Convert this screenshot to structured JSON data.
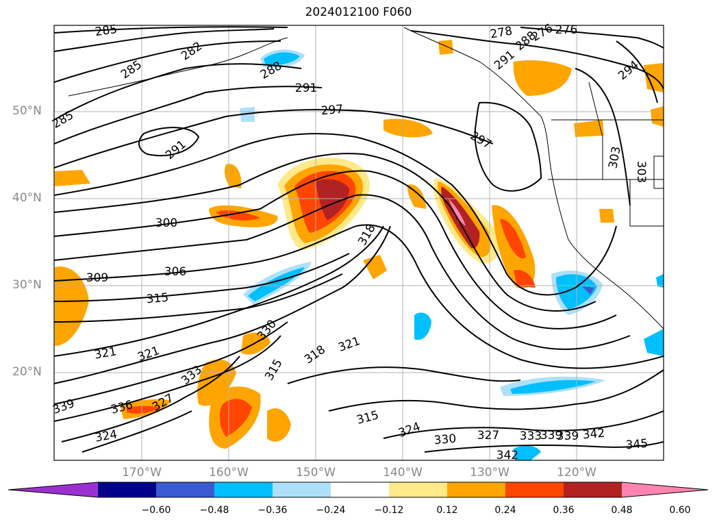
{
  "title": "2024012100 F060",
  "lat_labels": [
    "50°N",
    "40°N",
    "30°N",
    "20°N"
  ],
  "lon_labels": [
    "170°W",
    "160°W",
    "150°W",
    "140°W",
    "130°W",
    "120°W"
  ],
  "colorbar": {
    "ticks": [
      "−0.60",
      "−0.48",
      "−0.36",
      "−0.24",
      "−0.12",
      "0.12",
      "0.24",
      "0.36",
      "0.48",
      "0.60"
    ],
    "colors": [
      "#9b30d0",
      "#00008b",
      "#3a5bd0",
      "#00bfff",
      "#aee0fa",
      "#ffffff",
      "#ffe989",
      "#ffa500",
      "#ff4500",
      "#b22222",
      "#ff85b0"
    ]
  },
  "contour_labels": [
    "285",
    "282",
    "285",
    "285",
    "288",
    "291",
    "297",
    "291",
    "300",
    "306",
    "309",
    "315",
    "321",
    "321",
    "330",
    "333",
    "336",
    "327",
    "324",
    "318",
    "315",
    "318",
    "321",
    "315",
    "324",
    "330",
    "327",
    "333",
    "339",
    "339",
    "342",
    "342",
    "345",
    "276",
    "276",
    "278",
    "288",
    "291",
    "294",
    "297",
    "303",
    "303",
    "339"
  ]
}
